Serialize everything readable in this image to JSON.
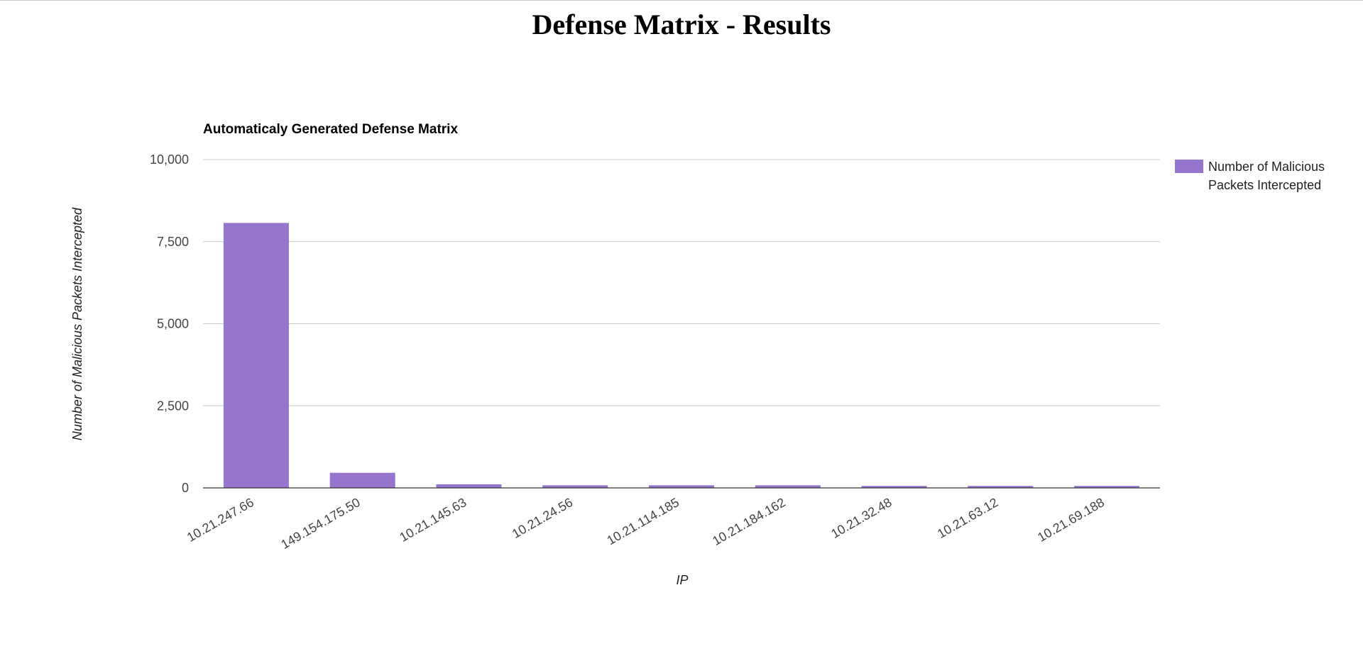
{
  "page": {
    "title": "Defense Matrix - Results"
  },
  "chart_data": {
    "type": "bar",
    "title": "Automaticaly Generated Defense Matrix",
    "xlabel": "IP",
    "ylabel": "Number of Malicious Packets Intercepted",
    "ylim": [
      0,
      10000
    ],
    "yticks": [
      0,
      2500,
      5000,
      7500,
      10000
    ],
    "ytick_labels": [
      "0",
      "2,500",
      "5,000",
      "7,500",
      "10,000"
    ],
    "grid": true,
    "legend_position": "right",
    "categories": [
      "10.21.247.66",
      "149.154.175.50",
      "10.21.145.63",
      "10.21.24.56",
      "10.21.114.185",
      "10.21.184.162",
      "10.21.32.48",
      "10.21.63.12",
      "10.21.69.188"
    ],
    "series": [
      {
        "name": "Number of Malicious Packets Intercepted",
        "legend_lines": [
          "Number of Malicious",
          "Packets Intercepted"
        ],
        "color": "#9575cd",
        "values": [
          8070,
          460,
          110,
          80,
          80,
          80,
          60,
          60,
          60
        ]
      }
    ]
  }
}
